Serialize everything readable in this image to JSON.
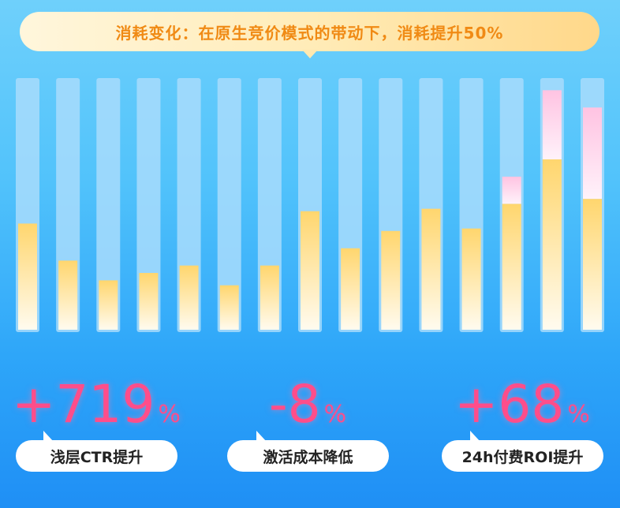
{
  "headline": "消耗变化：在原生竞价模式的带动下，消耗提升50%",
  "chart_data": {
    "type": "bar",
    "title": "",
    "xlabel": "",
    "ylabel": "",
    "ylim": [
      0,
      100
    ],
    "grid": false,
    "legend": "none",
    "categories": [
      "",
      "",
      "",
      "",
      "",
      "",
      "",
      "",
      "",
      "",
      "",
      "",
      "",
      "",
      ""
    ],
    "series": [
      {
        "values": [
          43,
          28,
          20,
          23,
          26,
          18,
          26,
          48,
          33,
          40,
          49,
          41,
          51,
          69,
          53
        ]
      },
      {
        "values": [
          0,
          0,
          0,
          0,
          0,
          0,
          0,
          0,
          0,
          0,
          0,
          0,
          11,
          28,
          37
        ]
      }
    ],
    "colors": {
      "track": "#a8dcfb",
      "base": "#ffd66e",
      "extra": "#ffc8e4",
      "stat": "#ff4d8a"
    }
  },
  "stats": [
    {
      "value": "+719",
      "unit": "%",
      "label": "浅层CTR提升"
    },
    {
      "value": "-8",
      "unit": "%",
      "label": "激活成本降低"
    },
    {
      "value": "+68",
      "unit": "%",
      "label": "24h付费ROI提升"
    }
  ]
}
